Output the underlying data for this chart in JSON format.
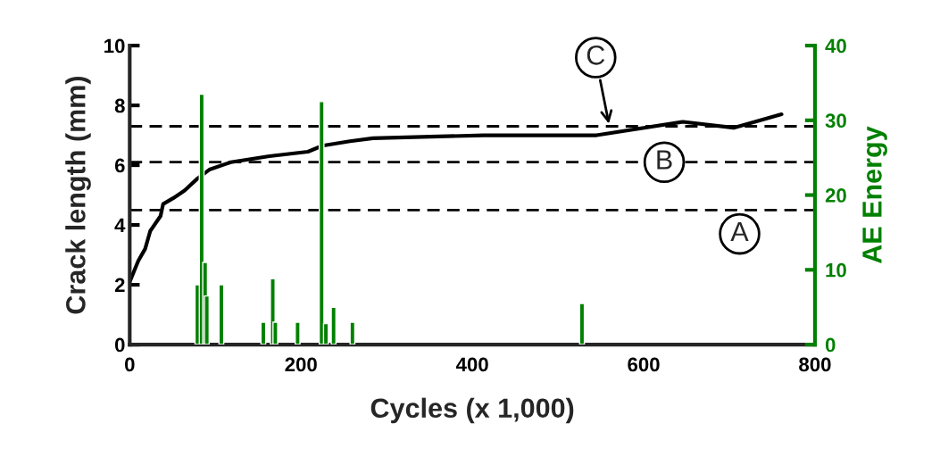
{
  "chart_data": {
    "type": "line",
    "xlabel": "Cycles (x 1,000)",
    "ylabel": "Crack length (mm)",
    "y2label": "AE Energy",
    "xlim": [
      0,
      800
    ],
    "xticks": [
      0,
      200,
      400,
      600,
      800
    ],
    "ylim": [
      0,
      10
    ],
    "yticks": [
      0,
      2,
      4,
      6,
      8,
      10
    ],
    "y2lim": [
      0,
      40
    ],
    "y2ticks": [
      0,
      10,
      20,
      30,
      40
    ],
    "grid": false,
    "series": [
      {
        "color": "#000000",
        "x": [
          0,
          10,
          18,
          24,
          36,
          39,
          51,
          64,
          79,
          93,
          118,
          163,
          208,
          225,
          257,
          284,
          413,
          545,
          646,
          705,
          761
        ],
        "values": [
          2.1,
          2.8,
          3.2,
          3.8,
          4.3,
          4.7,
          4.9,
          5.15,
          5.55,
          5.85,
          6.1,
          6.3,
          6.45,
          6.65,
          6.8,
          6.9,
          7.0,
          7.0,
          7.45,
          7.25,
          7.7
        ]
      },
      {
        "type": "bar",
        "axis": "y2",
        "color": "#008000",
        "x": [
          79,
          84,
          88,
          90,
          107,
          156,
          167,
          170,
          196,
          224,
          229,
          238,
          260,
          528
        ],
        "values": [
          8,
          33.5,
          11,
          6.5,
          8,
          3,
          8.8,
          3,
          3,
          32.5,
          2.8,
          5,
          3,
          5.5
        ]
      }
    ],
    "ref_lines": [
      {
        "axis": "y",
        "value": 4.5,
        "label": "A",
        "color": "#000000",
        "line_style": "dashed"
      },
      {
        "axis": "y",
        "value": 6.1,
        "label": "B",
        "color": "#000000",
        "line_style": "dashed"
      },
      {
        "axis": "y",
        "value": 7.3,
        "label": "C",
        "color": "#000000",
        "line_style": "dashed"
      }
    ]
  }
}
